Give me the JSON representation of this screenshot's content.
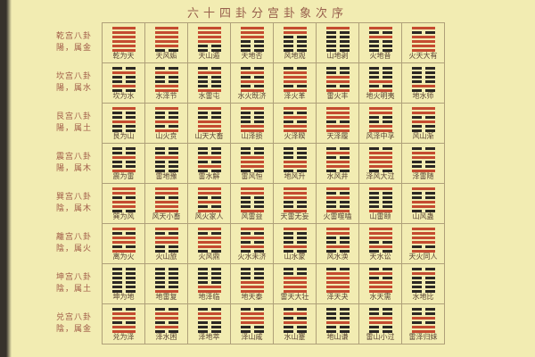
{
  "title": "六十四卦分宫卦象次序",
  "colors": {
    "background": "#f2ecb2",
    "grid_line": "#afa079",
    "title_text": "#98604d",
    "label_text": "#a05a47",
    "name_text": "#5a4434",
    "yang_line": "#c44b30",
    "yin_line": "#2c2824"
  },
  "line_legend": {
    "yang": "solid red bar (1)",
    "yin": "broken black bar (0)",
    "order": "lines encoded top to bottom"
  },
  "palaces": [
    {
      "label_line1": "乾宫八卦",
      "label_line2": "陽，属金",
      "hexagrams": [
        {
          "name": "乾为天",
          "lines": "111111"
        },
        {
          "name": "天风姤",
          "lines": "111110"
        },
        {
          "name": "天山遁",
          "lines": "111100"
        },
        {
          "name": "天地否",
          "lines": "111000"
        },
        {
          "name": "风地观",
          "lines": "110000"
        },
        {
          "name": "山地剥",
          "lines": "100000"
        },
        {
          "name": "火地晋",
          "lines": "101000"
        },
        {
          "name": "火天大有",
          "lines": "101111"
        }
      ]
    },
    {
      "label_line1": "坎宫八卦",
      "label_line2": "陽，属水",
      "hexagrams": [
        {
          "name": "坎为水",
          "lines": "010010"
        },
        {
          "name": "水泽节",
          "lines": "010011"
        },
        {
          "name": "水雷屯",
          "lines": "010001"
        },
        {
          "name": "水火既济",
          "lines": "010101"
        },
        {
          "name": "泽火革",
          "lines": "011101"
        },
        {
          "name": "雷火丰",
          "lines": "001101"
        },
        {
          "name": "地火明夷",
          "lines": "000101"
        },
        {
          "name": "地水师",
          "lines": "000010"
        }
      ]
    },
    {
      "label_line1": "艮宫八卦",
      "label_line2": "陽，属土",
      "hexagrams": [
        {
          "name": "艮为山",
          "lines": "100100"
        },
        {
          "name": "山火贲",
          "lines": "100101"
        },
        {
          "name": "山天大畜",
          "lines": "100111"
        },
        {
          "name": "山泽损",
          "lines": "100011"
        },
        {
          "name": "火泽睽",
          "lines": "101011"
        },
        {
          "name": "天泽履",
          "lines": "111011"
        },
        {
          "name": "风泽中孚",
          "lines": "110011"
        },
        {
          "name": "风山渐",
          "lines": "110100"
        }
      ]
    },
    {
      "label_line1": "震宫八卦",
      "label_line2": "陽，属木",
      "hexagrams": [
        {
          "name": "震为雷",
          "lines": "001001"
        },
        {
          "name": "雷地豫",
          "lines": "001000"
        },
        {
          "name": "雷水解",
          "lines": "001010"
        },
        {
          "name": "雷风恒",
          "lines": "001110"
        },
        {
          "name": "地风升",
          "lines": "000110"
        },
        {
          "name": "水风井",
          "lines": "010110"
        },
        {
          "name": "泽风大过",
          "lines": "011110"
        },
        {
          "name": "泽雷随",
          "lines": "011001"
        }
      ]
    },
    {
      "label_line1": "巽宫八卦",
      "label_line2": "陰，属木",
      "hexagrams": [
        {
          "name": "巽为风",
          "lines": "110110"
        },
        {
          "name": "风天小畜",
          "lines": "110111"
        },
        {
          "name": "风火家人",
          "lines": "110101"
        },
        {
          "name": "风雷益",
          "lines": "110001"
        },
        {
          "name": "天雷无妄",
          "lines": "111001"
        },
        {
          "name": "火雷噬嗑",
          "lines": "101001"
        },
        {
          "name": "山雷颐",
          "lines": "100001"
        },
        {
          "name": "山风蛊",
          "lines": "100110"
        }
      ]
    },
    {
      "label_line1": "離宫八卦",
      "label_line2": "陰，属火",
      "hexagrams": [
        {
          "name": "离为火",
          "lines": "101101"
        },
        {
          "name": "火山旅",
          "lines": "101100"
        },
        {
          "name": "火风鼎",
          "lines": "101110"
        },
        {
          "name": "火水未济",
          "lines": "101010"
        },
        {
          "name": "山水蒙",
          "lines": "100010"
        },
        {
          "name": "风水涣",
          "lines": "110010"
        },
        {
          "name": "天水讼",
          "lines": "111010"
        },
        {
          "name": "天火同人",
          "lines": "111101"
        }
      ]
    },
    {
      "label_line1": "坤宫八卦",
      "label_line2": "陰，属土",
      "hexagrams": [
        {
          "name": "坤为地",
          "lines": "000000"
        },
        {
          "name": "地雷复",
          "lines": "000001"
        },
        {
          "name": "地泽临",
          "lines": "000011"
        },
        {
          "name": "地天泰",
          "lines": "000111"
        },
        {
          "name": "雷天大壮",
          "lines": "001111"
        },
        {
          "name": "泽天夬",
          "lines": "011111"
        },
        {
          "name": "水天需",
          "lines": "010111"
        },
        {
          "name": "水地比",
          "lines": "010000"
        }
      ]
    },
    {
      "label_line1": "兑宫八卦",
      "label_line2": "陰，属金",
      "hexagrams": [
        {
          "name": "兑为泽",
          "lines": "011011"
        },
        {
          "name": "泽水困",
          "lines": "011010"
        },
        {
          "name": "泽地萃",
          "lines": "011000"
        },
        {
          "name": "泽山咸",
          "lines": "011100"
        },
        {
          "name": "水山蹇",
          "lines": "010100"
        },
        {
          "name": "地山谦",
          "lines": "000100"
        },
        {
          "name": "雷山小过",
          "lines": "001100"
        },
        {
          "name": "雷泽归妹",
          "lines": "001011"
        }
      ]
    }
  ]
}
